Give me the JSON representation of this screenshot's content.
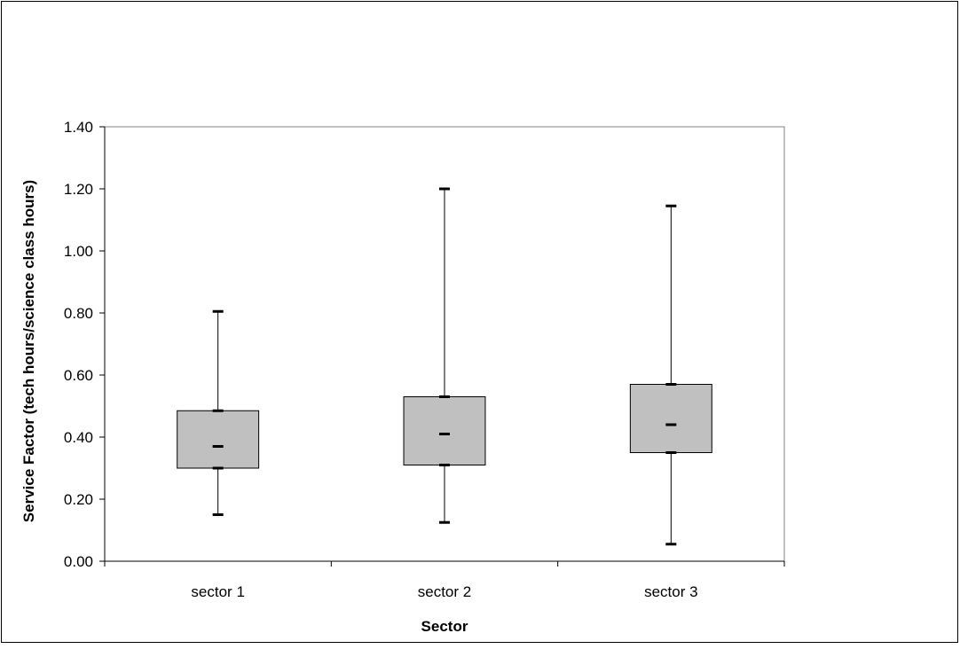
{
  "chart_data": {
    "type": "box",
    "xlabel": "Sector",
    "ylabel": "Service Factor (tech hours/science class hours)",
    "ylim": [
      0,
      1.4
    ],
    "yticks": [
      "0.00",
      "0.20",
      "0.40",
      "0.60",
      "0.80",
      "1.00",
      "1.20",
      "1.40"
    ],
    "categories": [
      "sector 1",
      "sector 2",
      "sector 3"
    ],
    "boxes": [
      {
        "category": "sector 1",
        "min": 0.15,
        "q1": 0.3,
        "median": 0.37,
        "q3": 0.485,
        "max": 0.805
      },
      {
        "category": "sector 2",
        "min": 0.125,
        "q1": 0.31,
        "median": 0.41,
        "q3": 0.53,
        "max": 1.2
      },
      {
        "category": "sector 3",
        "min": 0.055,
        "q1": 0.35,
        "median": 0.44,
        "q3": 0.57,
        "max": 1.145
      }
    ],
    "grid": false,
    "legend": "none",
    "colors": {
      "box_fill": "#c0c0c0",
      "line": "#000000"
    }
  }
}
